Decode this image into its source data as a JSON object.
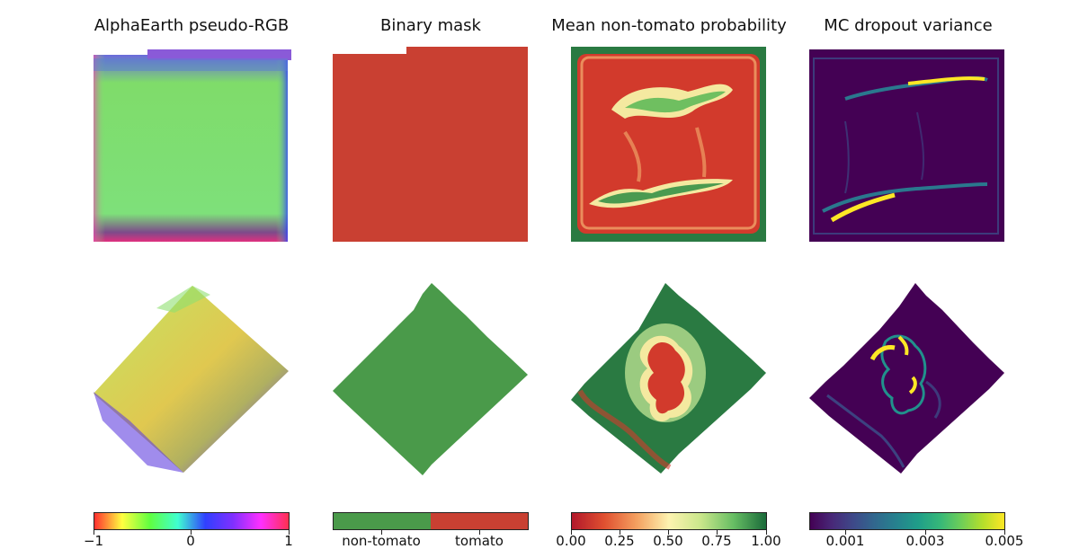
{
  "titles": {
    "col1": "AlphaEarth pseudo-RGB",
    "col2": "Binary mask",
    "col3": "Mean non-tomato probability",
    "col4": "MC dropout variance"
  },
  "colorbars": {
    "rgb": {
      "ticks": [
        "−1",
        "0",
        "1"
      ],
      "range": [
        -1,
        1
      ]
    },
    "mask": {
      "categories": [
        "non-tomato",
        "tomato"
      ],
      "colors": [
        "#4a9a4a",
        "#c94032"
      ]
    },
    "probability": {
      "ticks": [
        "0.00",
        "0.25",
        "0.50",
        "0.75",
        "1.00"
      ],
      "range": [
        0,
        1
      ]
    },
    "variance": {
      "ticks": [
        "0.001",
        "0.003",
        "0.005"
      ]
    }
  },
  "colors": {
    "tomato_red": "#c94032",
    "non_tomato_green": "#4a9a4a",
    "prob_high": "#1e6b3a",
    "var_low": "#440154"
  }
}
